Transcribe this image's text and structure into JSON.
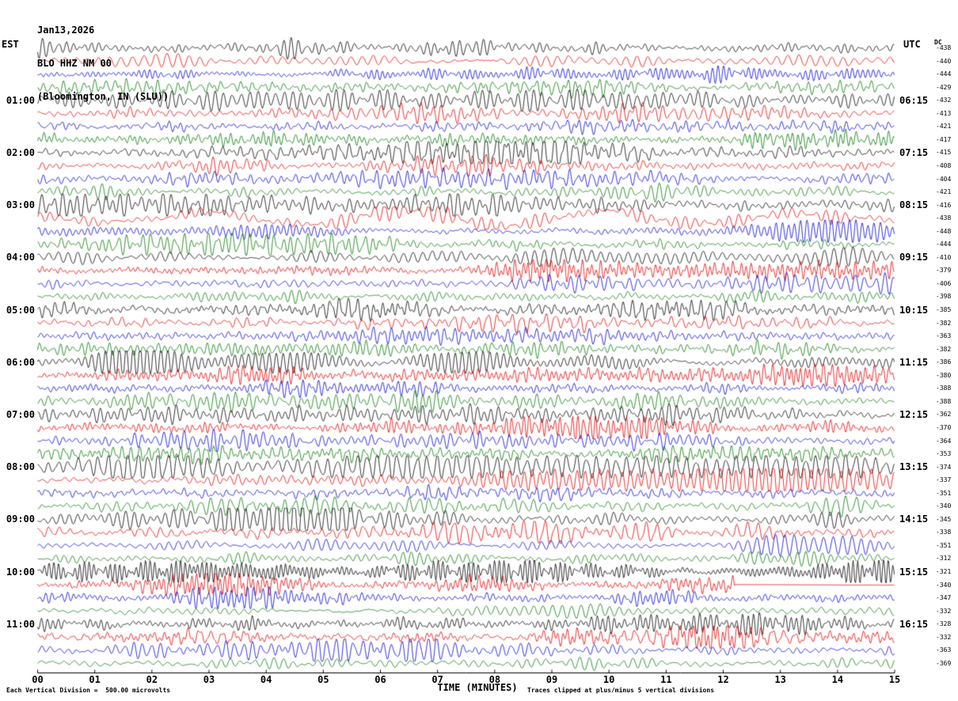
{
  "header": {
    "date": "Jan13,2026",
    "station": "BLO HHZ NM 00",
    "location": "(Bloomington, IN (SLU))"
  },
  "axes": {
    "left_timezone": "EST",
    "right_timezone": "UTC",
    "dc_label": "DC",
    "x_label": "TIME (MINUTES)",
    "x_ticks": [
      "00",
      "01",
      "02",
      "03",
      "04",
      "05",
      "06",
      "07",
      "08",
      "09",
      "10",
      "11",
      "12",
      "13",
      "14",
      "15"
    ]
  },
  "footer": {
    "scale_note": "Each Vertical Division =  500.00 microvolts",
    "clip_note": "Traces clipped at plus/minus 5 vertical divisions"
  },
  "chart_data": {
    "type": "line",
    "subtype": "seismogram-helicorder",
    "title": "BLO HHZ NM 00 (Bloomington, IN (SLU)) Jan13,2026",
    "xlabel": "TIME (MINUTES)",
    "x_range_minutes": [
      0,
      15
    ],
    "minutes_per_row": 15,
    "rows": 48,
    "trace_color_cycle": [
      "#000000",
      "#dd0000",
      "#0000cc",
      "#007700"
    ],
    "left_hour_labels": [
      "01:00",
      "02:00",
      "03:00",
      "04:00",
      "05:00",
      "06:00",
      "07:00",
      "08:00",
      "09:00",
      "10:00",
      "11:00"
    ],
    "right_hour_labels": [
      "06:15",
      "07:15",
      "08:15",
      "09:15",
      "10:15",
      "11:15",
      "12:15",
      "13:15",
      "14:15",
      "15:15",
      "16:15"
    ],
    "dc_values": [
      -438,
      -440,
      -444,
      -429,
      -432,
      -413,
      -421,
      -417,
      -415,
      -408,
      -404,
      -421,
      -416,
      -438,
      -448,
      -444,
      -410,
      -379,
      -406,
      -398,
      -385,
      -382,
      -363,
      -382,
      -386,
      -380,
      -388,
      -388,
      -362,
      -370,
      -364,
      -353,
      -374,
      -337,
      -351,
      -340,
      -345,
      -338,
      -351,
      -312,
      -321,
      -340,
      -347,
      -332,
      -328,
      -332,
      -363,
      -369
    ],
    "relative_amplitudes": [
      1.1,
      1.0,
      0.9,
      0.9,
      1.2,
      1.0,
      1.0,
      0.95,
      1.2,
      1.0,
      1.1,
      0.95,
      1.3,
      1.0,
      1.1,
      1.0,
      1.2,
      1.0,
      0.95,
      1.0,
      1.4,
      1.1,
      1.0,
      1.1,
      1.5,
      1.1,
      1.0,
      1.0,
      1.4,
      1.2,
      1.0,
      1.0,
      1.5,
      1.1,
      1.05,
      1.0,
      1.4,
      1.15,
      1.0,
      1.0,
      1.6,
      1.1,
      1.0,
      1.0,
      1.3,
      1.1,
      1.0,
      0.95
    ],
    "large_slow_oscillation_rows": [
      13
    ],
    "flat_gap_segments": [
      {
        "row": 41,
        "from_minute": 12.2,
        "to_minute": 15
      }
    ]
  }
}
